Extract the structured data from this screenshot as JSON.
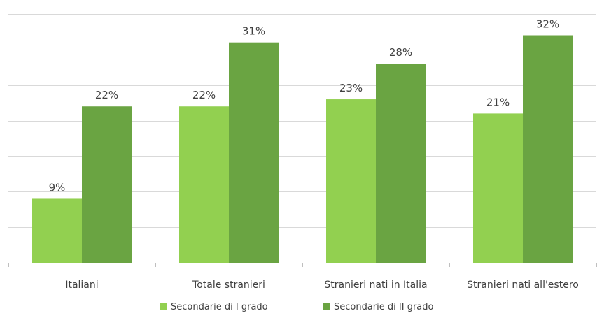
{
  "chart_data": {
    "type": "bar",
    "categories": [
      "Italiani",
      "Totale stranieri",
      "Stranieri nati in Italia",
      "Stranieri nati all'estero"
    ],
    "series": [
      {
        "name": "Secondarie di I grado",
        "values": [
          9,
          22,
          23,
          21
        ],
        "labels": [
          "9%",
          "22%",
          "23%",
          "21%"
        ],
        "color": "#92d050"
      },
      {
        "name": "Secondarie di II grado",
        "values": [
          22,
          31,
          28,
          32
        ],
        "labels": [
          "22%",
          "31%",
          "28%",
          "32%"
        ],
        "color": "#6aa442"
      }
    ],
    "ylim": [
      0,
      35
    ],
    "y_gridline_step": 5,
    "y_axis_labels_visible": false,
    "grid": true,
    "legend_position": "bottom"
  }
}
